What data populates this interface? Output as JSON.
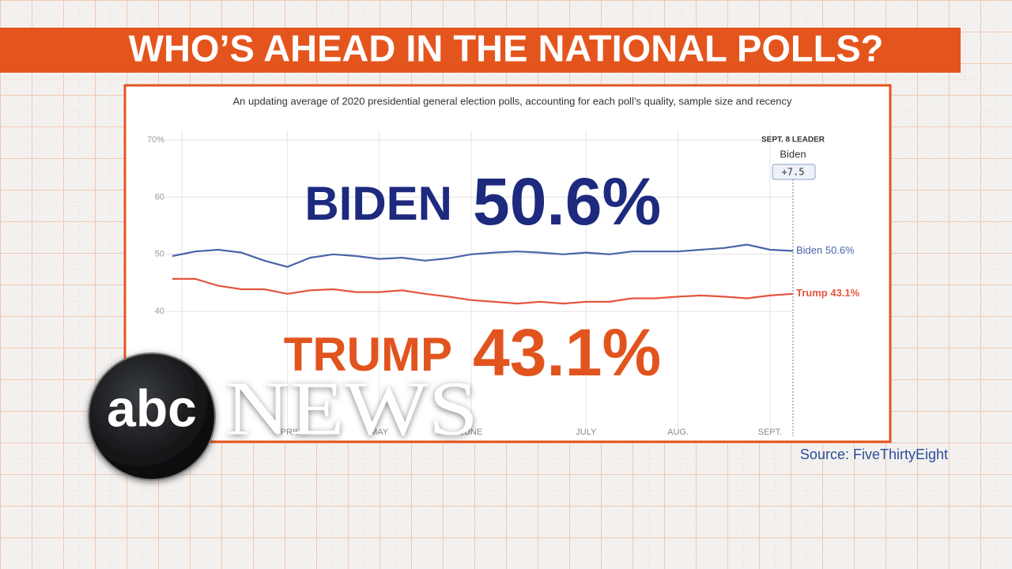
{
  "header": {
    "title": "WHO’S AHEAD IN THE NATIONAL POLLS?"
  },
  "chart_data": {
    "type": "line",
    "subtitle": "An updating average of 2020 presidential general election polls, accounting for each poll’s quality, sample size and recency",
    "categories": [
      null,
      null,
      null,
      null,
      null,
      "APRIL",
      null,
      null,
      null,
      "MAY",
      null,
      null,
      null,
      "JUNE",
      null,
      null,
      null,
      null,
      "JULY",
      null,
      null,
      null,
      "AUG.",
      null,
      null,
      null,
      "SEPT.",
      null
    ],
    "series": [
      {
        "name": "Biden",
        "color": "#4a64a8",
        "end_label": "Biden 50.6%",
        "values": [
          49.7,
          50.5,
          50.8,
          50.3,
          48.9,
          47.8,
          49.4,
          50,
          49.7,
          49.2,
          49.4,
          48.9,
          49.3,
          50,
          50.3,
          50.5,
          50.3,
          50,
          50.3,
          50,
          50.5,
          50.5,
          50.5,
          50.8,
          51.1,
          51.7,
          50.8,
          50.6
        ]
      },
      {
        "name": "Trump",
        "color": "#e4553f",
        "end_label": "Trump 43.1%",
        "values": [
          45.7,
          45.7,
          44.5,
          43.9,
          43.9,
          43.1,
          43.7,
          43.9,
          43.4,
          43.4,
          43.7,
          43.1,
          42.6,
          42,
          41.7,
          41.4,
          41.7,
          41.4,
          41.7,
          41.7,
          42.3,
          42.3,
          42.6,
          42.8,
          42.6,
          42.3,
          42.8,
          43.1
        ]
      }
    ],
    "ylim": [
      20,
      70
    ],
    "yticks": [
      40,
      50,
      60,
      {
        "value": 70,
        "label": "70%"
      }
    ],
    "grid": true,
    "leader": {
      "heading": "SEPT. 8 LEADER",
      "name": "Biden",
      "margin": "+7.5"
    },
    "overlay": [
      {
        "name": "BIDEN",
        "value": "50.6%",
        "color": "#1d2a7e"
      },
      {
        "name": "TRUMP",
        "value": "43.1%",
        "color": "#e2541e"
      }
    ],
    "source": "Source: FiveThirtyEight"
  },
  "logo": {
    "mark": "abc",
    "word": "NEWS"
  }
}
